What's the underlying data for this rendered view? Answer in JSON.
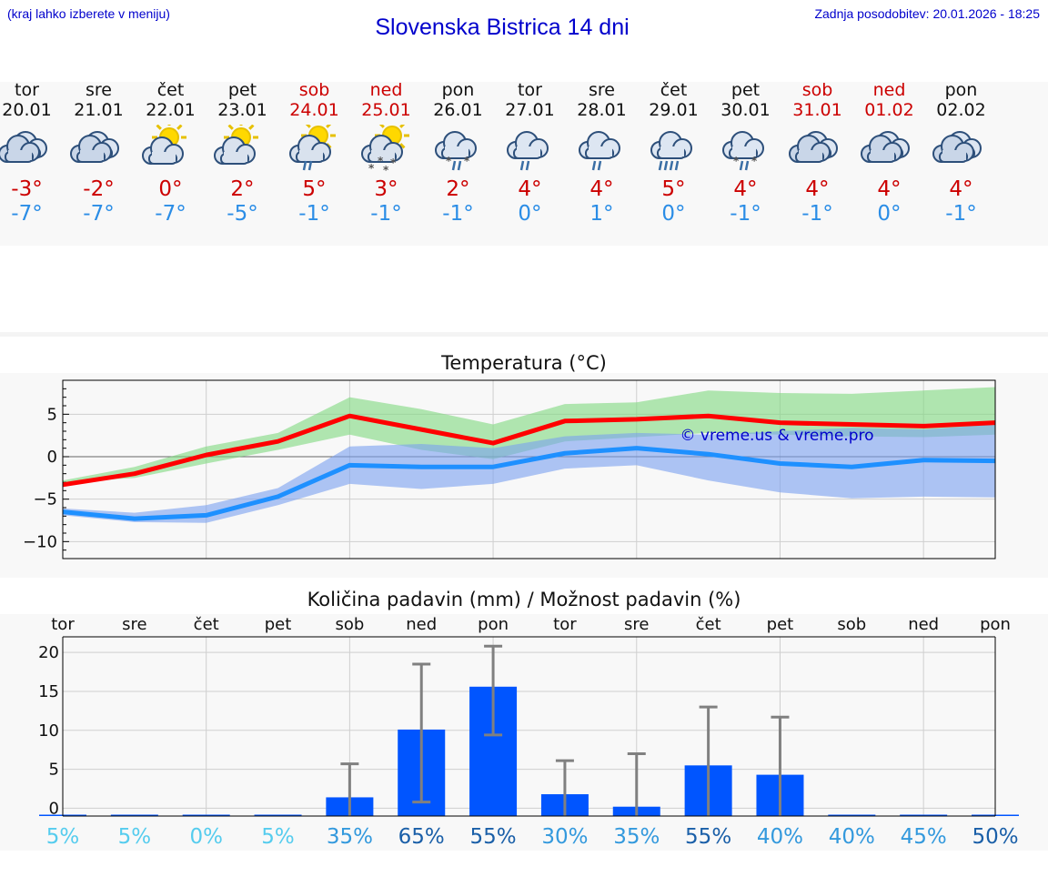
{
  "header": {
    "hint": "(kraj lahko izberete v meniju)",
    "title": "Slovenska Bistrica 14 dni",
    "updated": "Zadnja posodobitev: 20.01.2026 - 18:25"
  },
  "days": [
    {
      "name": "tor",
      "date": "20.01",
      "weekend": false,
      "icon": "cloudy-icon",
      "max": "-3°",
      "min": "-7°"
    },
    {
      "name": "sre",
      "date": "21.01",
      "weekend": false,
      "icon": "cloudy-icon",
      "max": "-2°",
      "min": "-7°"
    },
    {
      "name": "čet",
      "date": "22.01",
      "weekend": false,
      "icon": "sun-cloud-icon",
      "max": "0°",
      "min": "-7°"
    },
    {
      "name": "pet",
      "date": "23.01",
      "weekend": false,
      "icon": "sun-cloud-icon",
      "max": "2°",
      "min": "-5°"
    },
    {
      "name": "sob",
      "date": "24.01",
      "weekend": true,
      "icon": "sun-cloud-rain-icon",
      "max": "5°",
      "min": "-1°"
    },
    {
      "name": "ned",
      "date": "25.01",
      "weekend": true,
      "icon": "sun-cloud-snow-icon",
      "max": "3°",
      "min": "-1°"
    },
    {
      "name": "pon",
      "date": "26.01",
      "weekend": false,
      "icon": "cloud-sleet-icon",
      "max": "2°",
      "min": "-1°"
    },
    {
      "name": "tor",
      "date": "27.01",
      "weekend": false,
      "icon": "cloud-rain-icon",
      "max": "4°",
      "min": "0°"
    },
    {
      "name": "sre",
      "date": "28.01",
      "weekend": false,
      "icon": "cloud-rain-icon",
      "max": "4°",
      "min": "1°"
    },
    {
      "name": "čet",
      "date": "29.01",
      "weekend": false,
      "icon": "cloud-heavy-rain-icon",
      "max": "5°",
      "min": "0°"
    },
    {
      "name": "pet",
      "date": "30.01",
      "weekend": false,
      "icon": "cloud-sleet-icon",
      "max": "4°",
      "min": "-1°"
    },
    {
      "name": "sob",
      "date": "31.01",
      "weekend": true,
      "icon": "cloudy-icon",
      "max": "4°",
      "min": "-1°"
    },
    {
      "name": "ned",
      "date": "01.02",
      "weekend": true,
      "icon": "cloudy-icon",
      "max": "4°",
      "min": "0°"
    },
    {
      "name": "pon",
      "date": "02.02",
      "weekend": false,
      "icon": "cloudy-icon",
      "max": "4°",
      "min": "-1°"
    }
  ],
  "chart_data": [
    {
      "type": "line",
      "title": "Temperatura (°C)",
      "watermark": "© vreme.us & vreme.pro",
      "ylim": [
        -12,
        9
      ],
      "yticks": [
        5,
        0,
        -5,
        -10
      ],
      "ytick_labels": [
        "5",
        "0",
        "−5",
        "−10"
      ],
      "x": [
        0,
        1,
        2,
        3,
        4,
        5,
        6,
        7,
        8,
        9,
        10,
        11,
        12,
        13
      ],
      "series": [
        {
          "name": "max",
          "color": "#ff0000",
          "values": [
            -3.3,
            -2.0,
            0.2,
            1.8,
            4.8,
            3.2,
            1.6,
            4.2,
            4.4,
            4.8,
            4.0,
            3.8,
            3.6,
            4.0
          ],
          "band_low": [
            -3.0,
            -2.5,
            -0.8,
            0.8,
            2.6,
            0.8,
            -0.3,
            1.8,
            2.3,
            2.8,
            2.6,
            2.4,
            2.3,
            2.6
          ],
          "band_high": [
            -2.8,
            -1.2,
            1.2,
            2.8,
            7.0,
            5.6,
            3.8,
            6.2,
            6.4,
            7.8,
            7.5,
            7.4,
            7.8,
            8.2
          ],
          "band_color": "#7fd87f"
        },
        {
          "name": "min",
          "color": "#1e90ff",
          "values": [
            -6.5,
            -7.3,
            -6.9,
            -4.7,
            -1.0,
            -1.2,
            -1.2,
            0.4,
            1.0,
            0.3,
            -0.8,
            -1.2,
            -0.4,
            -0.5
          ],
          "band_low": [
            -6.9,
            -7.7,
            -7.8,
            -5.7,
            -3.2,
            -3.8,
            -3.2,
            -1.4,
            -1.0,
            -2.8,
            -4.2,
            -4.9,
            -4.7,
            -4.8
          ],
          "band_high": [
            -6.1,
            -6.6,
            -5.7,
            -3.7,
            1.2,
            1.5,
            1.0,
            2.4,
            2.8,
            2.6,
            3.0,
            3.4,
            3.2,
            3.8
          ],
          "band_color": "#7aa0f0"
        }
      ]
    },
    {
      "type": "bar",
      "title": "Količina padavin (mm) / Možnost padavin (%)",
      "categories": [
        "tor",
        "sre",
        "čet",
        "pet",
        "sob",
        "ned",
        "pon",
        "tor",
        "sre",
        "čet",
        "pet",
        "sob",
        "ned",
        "pon"
      ],
      "ylim": [
        -1,
        22
      ],
      "yticks": [
        20,
        15,
        10,
        5,
        0
      ],
      "values": [
        0,
        0,
        0,
        0,
        1.4,
        10.1,
        15.6,
        1.8,
        0.2,
        5.5,
        4.3,
        0,
        0,
        0
      ],
      "err_low": [
        0,
        0,
        0,
        0,
        0,
        0.8,
        9.4,
        0,
        0,
        0,
        0,
        0,
        0,
        0
      ],
      "err_high": [
        0,
        0,
        0,
        0,
        5.7,
        18.5,
        20.8,
        6.1,
        7.0,
        13.0,
        11.7,
        0,
        0,
        0
      ],
      "probability": [
        "5%",
        "5%",
        "0%",
        "5%",
        "35%",
        "65%",
        "55%",
        "30%",
        "35%",
        "55%",
        "40%",
        "40%",
        "45%",
        "50%"
      ],
      "probability_colors": [
        "#55ccee",
        "#55ccee",
        "#55ccee",
        "#55ccee",
        "#3399dd",
        "#1a5fa8",
        "#1a5fa8",
        "#3399dd",
        "#3399dd",
        "#1a5fa8",
        "#3399dd",
        "#3399dd",
        "#3399dd",
        "#1a5fa8"
      ],
      "bar_color": "#0055ff",
      "err_color": "#808080"
    }
  ]
}
